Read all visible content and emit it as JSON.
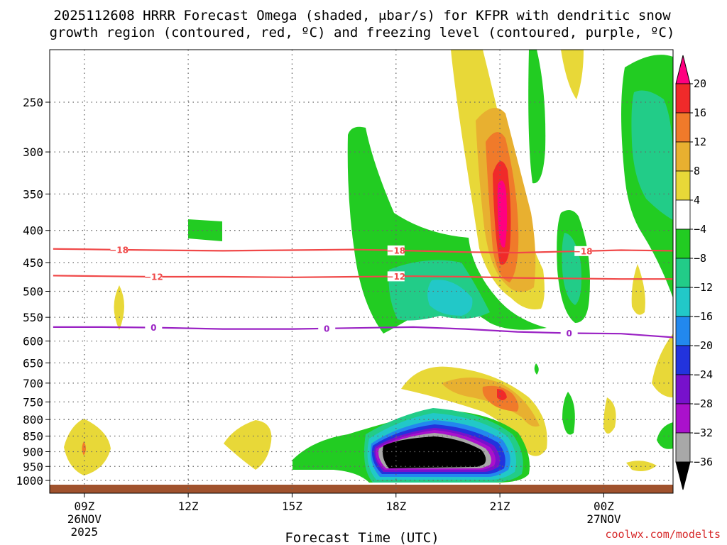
{
  "chart_data": {
    "type": "heatmap",
    "title_line1": "2025112608 HRRR Forecast Omega (shaded, μbar/s) for KFPR with dendritic snow",
    "title_line2": "growth region (contoured, red, ºC) and freezing level (contoured, purple, ºC)",
    "xlabel": "Forecast Time (UTC)",
    "credit": "coolwx.com/modelts",
    "x_ticks": [
      {
        "hour": 9,
        "lines": [
          "09Z",
          "26NOV",
          "2025"
        ]
      },
      {
        "hour": 12,
        "lines": [
          "12Z"
        ]
      },
      {
        "hour": 15,
        "lines": [
          "15Z"
        ]
      },
      {
        "hour": 18,
        "lines": [
          "18Z"
        ]
      },
      {
        "hour": 21,
        "lines": [
          "21Z"
        ]
      },
      {
        "hour": 24,
        "lines": [
          "00Z",
          "27NOV"
        ]
      }
    ],
    "xlim": [
      8,
      26
    ],
    "y_ticks": [
      250,
      300,
      350,
      400,
      450,
      500,
      550,
      600,
      650,
      700,
      750,
      800,
      850,
      900,
      950,
      1000
    ],
    "ylim_hpa": [
      1025,
      200
    ],
    "grid": true,
    "colorbar": {
      "labels": [
        "20",
        "16",
        "12",
        "8",
        "4",
        "−4",
        "−8",
        "−12",
        "−16",
        "−20",
        "−24",
        "−28",
        "−32",
        "−36"
      ],
      "colors": [
        "#ff0080",
        "#f02a2a",
        "#f07a2a",
        "#e8b030",
        "#e8d838",
        "#ffffff",
        "#22cc22",
        "#22cc88",
        "#22c8c8",
        "#2288ee",
        "#2233dd",
        "#7711cc",
        "#aa11cc",
        "#a8a8a8",
        "#000000"
      ]
    },
    "contours": [
      {
        "name": "-18",
        "color": "#f04848",
        "label": "−18",
        "hpa": [
          428,
          429,
          430,
          431,
          430,
          429,
          431,
          433,
          434,
          432,
          430,
          431
        ]
      },
      {
        "name": "-12",
        "color": "#f04848",
        "label": "−12",
        "hpa": [
          472,
          473,
          474,
          474,
          475,
          474,
          473,
          474,
          476,
          477,
          478,
          478
        ]
      },
      {
        "name": "0",
        "color": "#9a22c4",
        "label": "0",
        "hpa": [
          570,
          570,
          571,
          574,
          574,
          572,
          570,
          574,
          580,
          583,
          584,
          592
        ]
      }
    ],
    "contour_hours": [
      8.1,
      9.5,
      11,
      13,
      15,
      16.8,
      18.5,
      20,
      21.5,
      23,
      24.5,
      26
    ]
  }
}
